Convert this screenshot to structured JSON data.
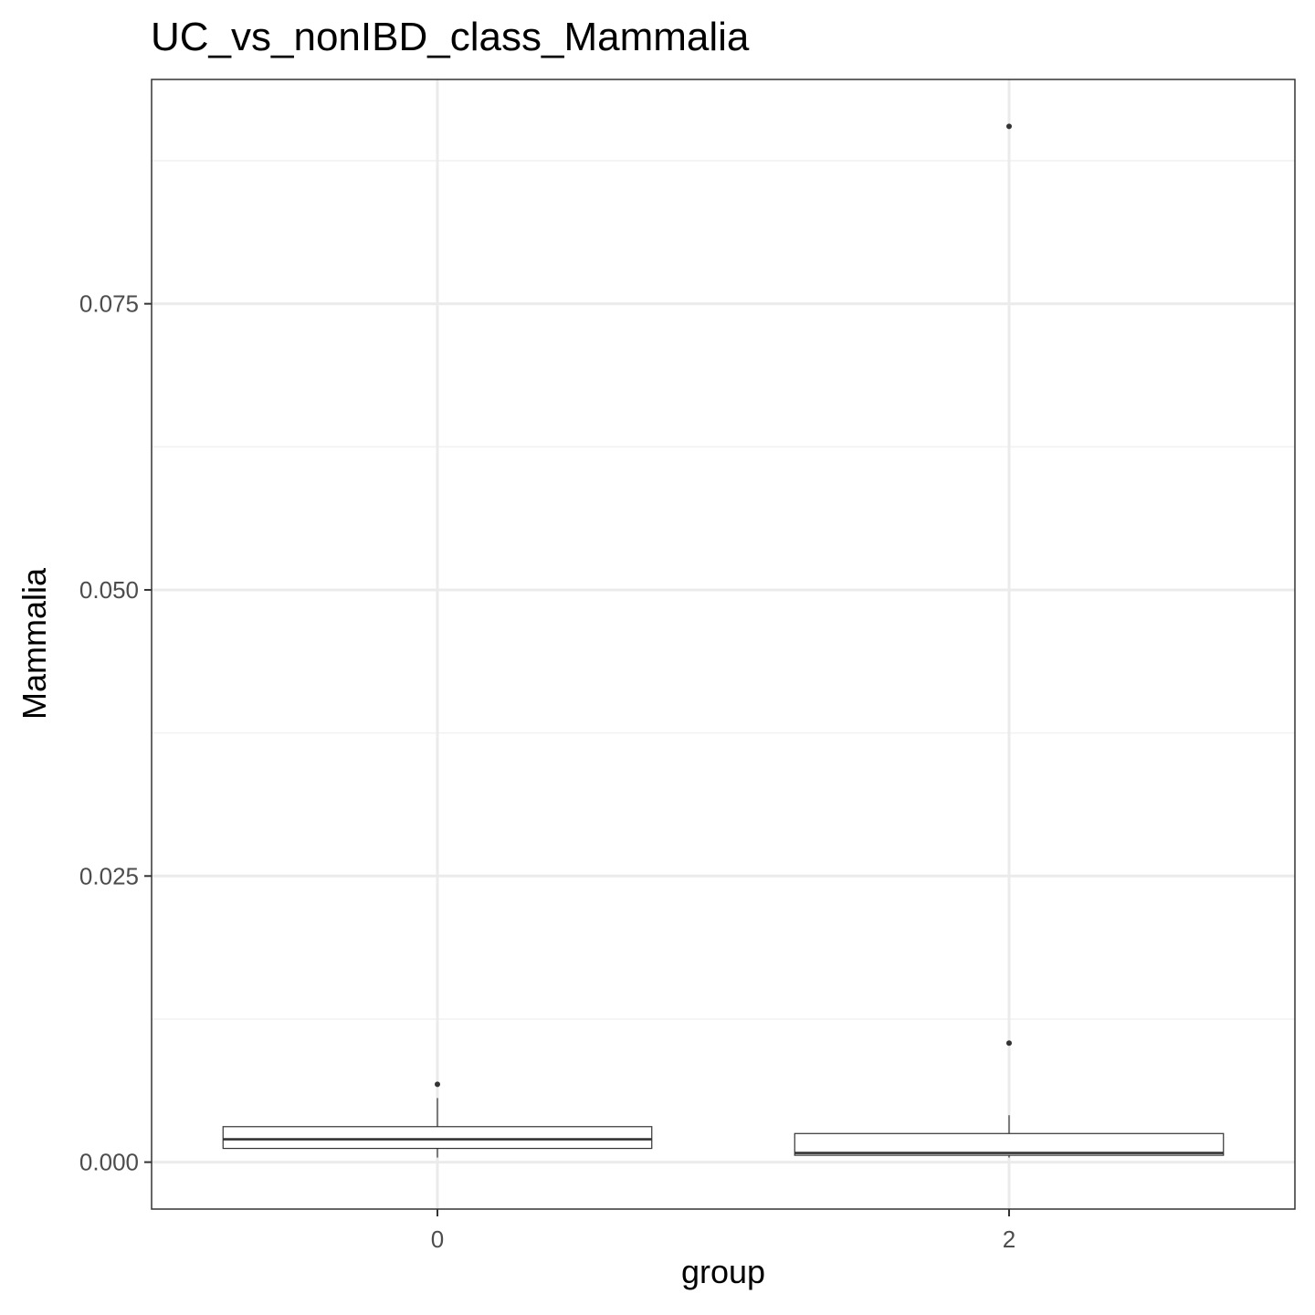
{
  "chart_data": {
    "type": "boxplot",
    "title": "UC_vs_nonIBD_class_Mammalia",
    "xlabel": "group",
    "ylabel": "Mammalia",
    "categories": [
      "0",
      "2"
    ],
    "ylim": [
      -0.0041,
      0.0946
    ],
    "yticks": [
      0.0,
      0.025,
      0.05,
      0.075
    ],
    "ytick_labels": [
      "0.000",
      "0.025",
      "0.050",
      "0.075"
    ],
    "grid": true,
    "boxes": [
      {
        "group": "0",
        "whisker_low": 0.0004,
        "q1": 0.0012,
        "median": 0.002,
        "q3": 0.0031,
        "whisker_high": 0.0056,
        "outliers": [
          0.0068
        ]
      },
      {
        "group": "2",
        "whisker_low": 0.0004,
        "q1": 0.0006,
        "median": 0.0008,
        "q3": 0.0025,
        "whisker_high": 0.0041,
        "outliers": [
          0.0104,
          0.0905
        ]
      }
    ],
    "colors": {
      "box_fill": "#ffffff",
      "box_stroke": "#333333",
      "grid_major": "#ebebeb",
      "grid_minor": "#f2f2f2",
      "panel_border": "#333333"
    }
  }
}
